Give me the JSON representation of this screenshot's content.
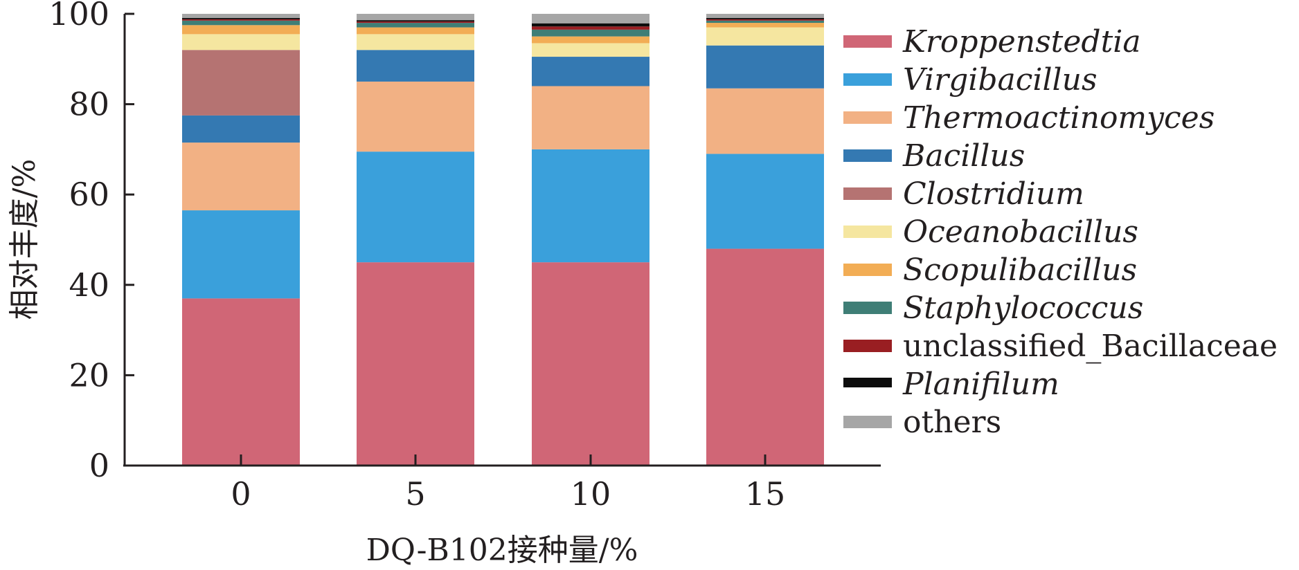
{
  "chart_data": {
    "type": "bar",
    "stacked": true,
    "categories": [
      "0",
      "5",
      "10",
      "15"
    ],
    "xlabel": "DQ-B102接种量/%",
    "ylabel": "相对丰度/%",
    "ylim": [
      0,
      100
    ],
    "yticks": [
      "0",
      "20",
      "40",
      "60",
      "80",
      "100"
    ],
    "grid": false,
    "legend_position": "right",
    "series": [
      {
        "name": "Kroppenstedtia",
        "italic": true,
        "color": "#d06676",
        "values": [
          37.0,
          45.0,
          45.0,
          48.0
        ]
      },
      {
        "name": "Virgibacillus",
        "italic": true,
        "color": "#3aa0db",
        "values": [
          19.5,
          24.5,
          25.0,
          21.0
        ]
      },
      {
        "name": "Thermoactinomyces",
        "italic": true,
        "color": "#f2b184",
        "values": [
          15.0,
          15.5,
          14.0,
          14.5
        ]
      },
      {
        "name": "Bacillus",
        "italic": true,
        "color": "#3479b2",
        "values": [
          6.0,
          7.0,
          6.5,
          9.5
        ]
      },
      {
        "name": "Clostridium",
        "italic": true,
        "color": "#b57372",
        "values": [
          14.5,
          0.0,
          0.0,
          0.0
        ]
      },
      {
        "name": "Oceanobacillus",
        "italic": true,
        "color": "#f5e6a0",
        "values": [
          3.5,
          3.5,
          3.0,
          4.0
        ]
      },
      {
        "name": "Scopulibacillus",
        "italic": true,
        "color": "#f2ad55",
        "values": [
          2.0,
          1.5,
          1.5,
          1.0
        ]
      },
      {
        "name": "Staphylococcus",
        "italic": true,
        "color": "#3f7e76",
        "values": [
          1.0,
          1.0,
          1.5,
          0.5
        ]
      },
      {
        "name": "unclassified_Bacillaceae",
        "italic": false,
        "color": "#991e22",
        "values": [
          0.3,
          0.3,
          0.7,
          0.3
        ]
      },
      {
        "name": "Planifilum",
        "italic": true,
        "color": "#0d0d0d",
        "values": [
          0.3,
          0.3,
          0.7,
          0.3
        ]
      },
      {
        "name": "others",
        "italic": false,
        "color": "#a6a6a6",
        "values": [
          0.9,
          1.4,
          2.1,
          0.9
        ]
      }
    ]
  }
}
